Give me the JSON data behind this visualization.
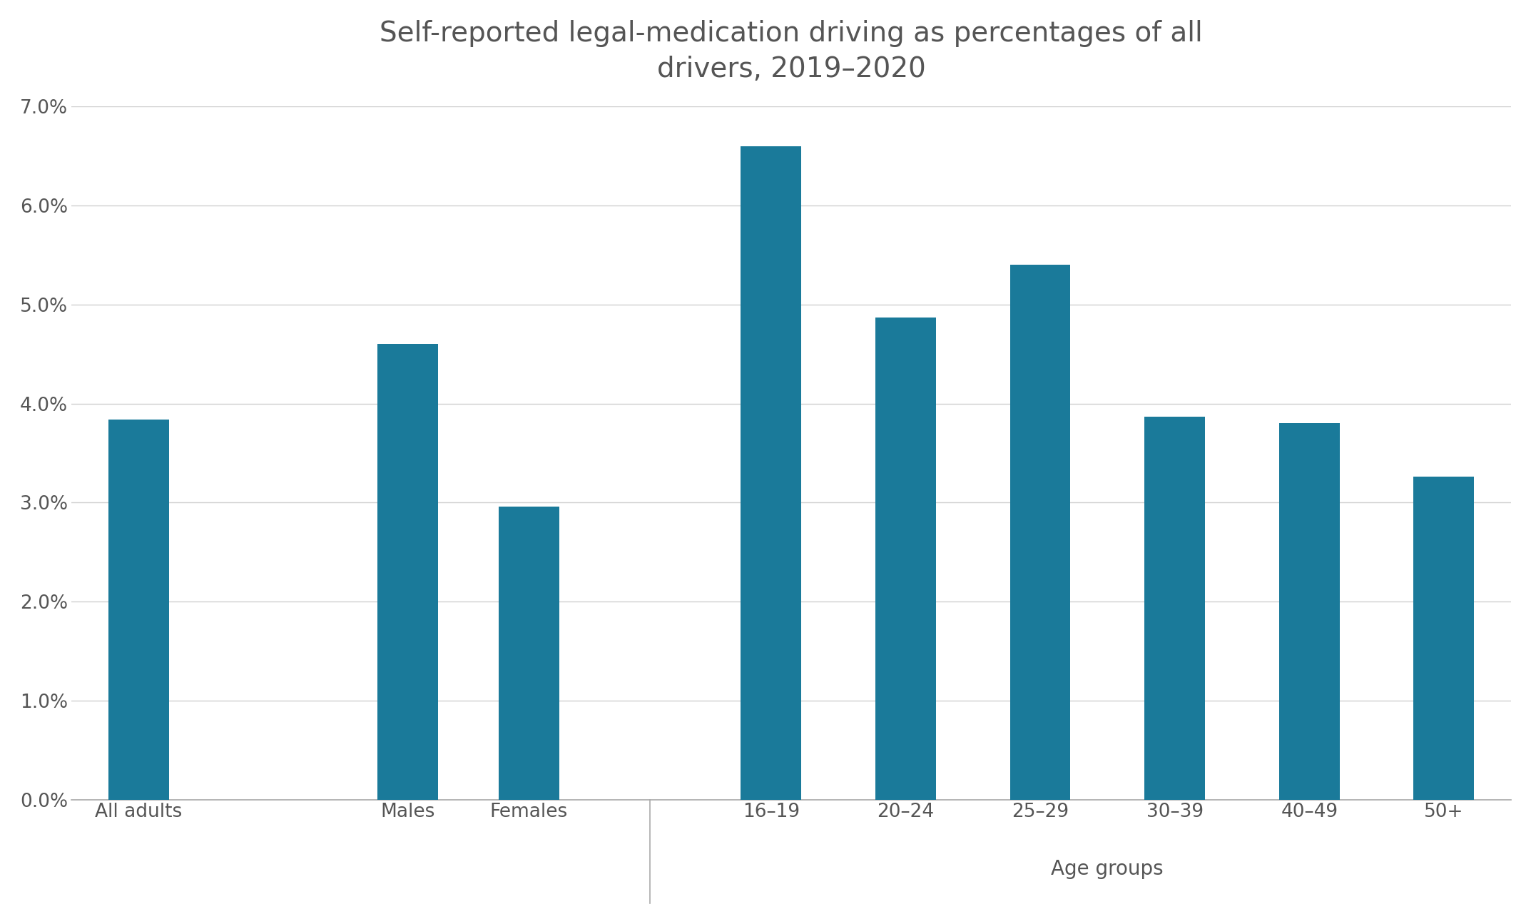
{
  "title": "Self-reported legal-medication driving as percentages of all\ndrivers, 2019–2020",
  "categories": [
    "All adults",
    "Males",
    "Females",
    "16–19",
    "20–24",
    "25–29",
    "30–39",
    "40–49",
    "50+"
  ],
  "values": [
    0.0384,
    0.046,
    0.0296,
    0.066,
    0.0487,
    0.054,
    0.0387,
    0.038,
    0.0326
  ],
  "bar_color": "#1a7a9a",
  "background_color": "#ffffff",
  "xlabel": "Age groups",
  "ylim": [
    0,
    0.07
  ],
  "yticks": [
    0.0,
    0.01,
    0.02,
    0.03,
    0.04,
    0.05,
    0.06,
    0.07
  ],
  "title_fontsize": 28,
  "axis_label_fontsize": 20,
  "tick_fontsize": 19,
  "bar_width": 0.45,
  "grid_color": "#d0d0d0",
  "spine_color": "#aaaaaa",
  "text_color": "#555555"
}
